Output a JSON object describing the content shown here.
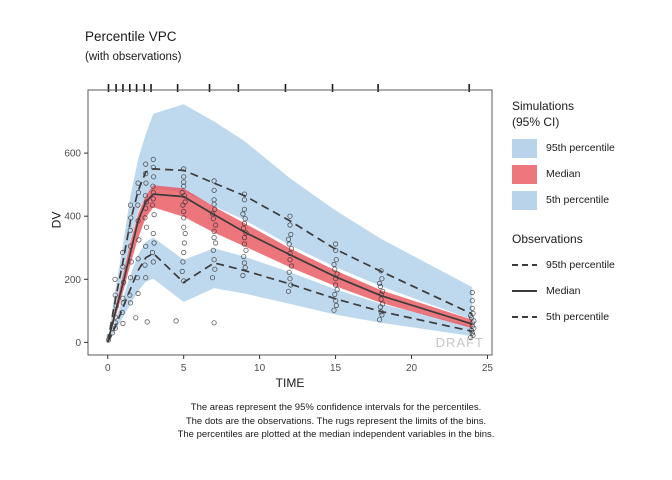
{
  "title": "Percentile VPC",
  "subtitle": "(with observations)",
  "watermark": "DRAFT",
  "axes": {
    "x_label": "TIME",
    "y_label": "DV"
  },
  "legend": {
    "simulations": {
      "heading_line1": "Simulations",
      "heading_line2": "(95% CI)",
      "items": [
        {
          "label": "95th percentile",
          "color": "#B8D3EA"
        },
        {
          "label": "Median",
          "color": "#EE767D"
        },
        {
          "label": "5th percentile",
          "color": "#B8D3EA"
        }
      ]
    },
    "observations": {
      "heading": "Observations",
      "items": [
        {
          "label": "95th percentile",
          "style": "dashed"
        },
        {
          "label": "Median",
          "style": "solid"
        },
        {
          "label": "5th percentile",
          "style": "dashed"
        }
      ]
    }
  },
  "caption_lines": [
    "The areas represent the 95% confidence intervals for the percentiles.",
    "The dots are the observations. The rugs represent the limits of the bins.",
    "The percentiles are plotted at the median independent variables in the bins."
  ],
  "chart_data": {
    "type": "area",
    "title": "Percentile VPC",
    "subtitle": "(with observations)",
    "xlabel": "TIME",
    "ylabel": "DV",
    "xlim": [
      -1.3,
      25.3
    ],
    "ylim": [
      -40,
      800
    ],
    "x_ticks": [
      0,
      5,
      10,
      15,
      20,
      25
    ],
    "y_ticks": [
      0,
      200,
      400,
      600
    ],
    "grid": false,
    "legend_position": "right",
    "x": [
      0,
      0.5,
      1,
      1.5,
      2,
      2.5,
      3,
      5,
      7,
      9,
      12,
      15,
      18,
      24
    ],
    "bands": [
      {
        "name": "95th percentile 95% CI",
        "color": "#88B8DE",
        "opacity": 0.55,
        "upper": [
          0,
          165,
          310,
          465,
          580,
          660,
          725,
          755,
          700,
          638,
          520,
          418,
          328,
          175
        ],
        "lower": [
          0,
          100,
          200,
          318,
          415,
          462,
          485,
          478,
          432,
          388,
          308,
          238,
          178,
          72
        ]
      },
      {
        "name": "5th percentile 95% CI",
        "color": "#88B8DE",
        "opacity": 0.55,
        "upper": [
          0,
          70,
          140,
          215,
          278,
          318,
          332,
          262,
          298,
          272,
          222,
          168,
          122,
          52
        ],
        "lower": [
          0,
          38,
          78,
          122,
          162,
          192,
          202,
          128,
          172,
          155,
          122,
          88,
          62,
          20
        ]
      },
      {
        "name": "Median 95% CI",
        "color": "#E8545C",
        "opacity": 0.8,
        "upper": [
          0,
          110,
          212,
          318,
          408,
          465,
          498,
          488,
          430,
          378,
          298,
          228,
          165,
          72
        ],
        "lower": [
          0,
          78,
          158,
          248,
          330,
          395,
          428,
          398,
          348,
          305,
          238,
          178,
          125,
          45
        ]
      }
    ],
    "lines": [
      {
        "name": "Observed 95th percentile",
        "style": "dashed",
        "values": [
          0,
          135,
          255,
          385,
          480,
          540,
          550,
          545,
          505,
          465,
          385,
          295,
          225,
          90
        ]
      },
      {
        "name": "Observed median",
        "style": "solid",
        "values": [
          0,
          95,
          185,
          285,
          385,
          445,
          470,
          462,
          405,
          350,
          278,
          208,
          148,
          58
        ]
      },
      {
        "name": "Observed 5th percentile",
        "style": "dashed",
        "values": [
          0,
          50,
          110,
          170,
          228,
          268,
          282,
          190,
          252,
          228,
          185,
          138,
          98,
          35
        ]
      }
    ],
    "rug_x": [
      0.05,
      0.55,
      1.0,
      1.45,
      1.9,
      2.4,
      2.85,
      4.6,
      6.7,
      8.6,
      11.7,
      14.8,
      17.8,
      23.8
    ],
    "points": [
      [
        0.05,
        8
      ],
      [
        0.1,
        20
      ],
      [
        0.3,
        30
      ],
      [
        0.5,
        45
      ],
      [
        0.5,
        80
      ],
      [
        0.55,
        115
      ],
      [
        0.5,
        150
      ],
      [
        0.48,
        200
      ],
      [
        0.52,
        62
      ],
      [
        1,
        60
      ],
      [
        0.95,
        95
      ],
      [
        1,
        140
      ],
      [
        1.05,
        190
      ],
      [
        1,
        240
      ],
      [
        0.98,
        285
      ],
      [
        1.02,
        125
      ],
      [
        1.45,
        150
      ],
      [
        1.5,
        205
      ],
      [
        1.55,
        255
      ],
      [
        1.5,
        305
      ],
      [
        1.48,
        355
      ],
      [
        1.52,
        395
      ],
      [
        1.5,
        125
      ],
      [
        1.5,
        435
      ],
      [
        1.95,
        205
      ],
      [
        2,
        265
      ],
      [
        2.05,
        325
      ],
      [
        2,
        385
      ],
      [
        1.98,
        435
      ],
      [
        2.02,
        475
      ],
      [
        2,
        155
      ],
      [
        2,
        505
      ],
      [
        1.85,
        78
      ],
      [
        2.45,
        245
      ],
      [
        2.5,
        305
      ],
      [
        2.55,
        365
      ],
      [
        2.5,
        425
      ],
      [
        2.48,
        465
      ],
      [
        2.52,
        505
      ],
      [
        2.5,
        535
      ],
      [
        2.5,
        565
      ],
      [
        2.5,
        205
      ],
      [
        2.6,
        65
      ],
      [
        2.45,
        395
      ],
      [
        2.55,
        445
      ],
      [
        2.95,
        285
      ],
      [
        3,
        345
      ],
      [
        3.05,
        405
      ],
      [
        3,
        455
      ],
      [
        2.98,
        495
      ],
      [
        3.02,
        525
      ],
      [
        3,
        555
      ],
      [
        3,
        580
      ],
      [
        3,
        255
      ],
      [
        3.05,
        315
      ],
      [
        2.95,
        435
      ],
      [
        3,
        475
      ],
      [
        4.5,
        68
      ],
      [
        4.9,
        225
      ],
      [
        5,
        285
      ],
      [
        5.1,
        345
      ],
      [
        5,
        395
      ],
      [
        4.95,
        435
      ],
      [
        5.05,
        465
      ],
      [
        5,
        495
      ],
      [
        5,
        525
      ],
      [
        5,
        550
      ],
      [
        5,
        195
      ],
      [
        4.95,
        255
      ],
      [
        5.05,
        315
      ],
      [
        5,
        365
      ],
      [
        5,
        415
      ],
      [
        5.1,
        445
      ],
      [
        4.9,
        475
      ],
      [
        5,
        508
      ],
      [
        7,
        62
      ],
      [
        6.9,
        205
      ],
      [
        7,
        262
      ],
      [
        7.1,
        315
      ],
      [
        7,
        352
      ],
      [
        6.95,
        392
      ],
      [
        7.05,
        422
      ],
      [
        7,
        452
      ],
      [
        7,
        482
      ],
      [
        7,
        512
      ],
      [
        7.05,
        232
      ],
      [
        6.95,
        292
      ],
      [
        7,
        332
      ],
      [
        7.1,
        372
      ],
      [
        6.9,
        408
      ],
      [
        7,
        438
      ],
      [
        8.9,
        212
      ],
      [
        9,
        252
      ],
      [
        9.1,
        292
      ],
      [
        9,
        332
      ],
      [
        8.95,
        362
      ],
      [
        9.05,
        392
      ],
      [
        9,
        422
      ],
      [
        9,
        452
      ],
      [
        9,
        470
      ],
      [
        9.05,
        237
      ],
      [
        8.95,
        272
      ],
      [
        9,
        312
      ],
      [
        9.1,
        347
      ],
      [
        9,
        377
      ],
      [
        8.9,
        407
      ],
      [
        11.9,
        162
      ],
      [
        12,
        202
      ],
      [
        12.1,
        242
      ],
      [
        12,
        282
      ],
      [
        11.95,
        312
      ],
      [
        12.05,
        342
      ],
      [
        12,
        372
      ],
      [
        12,
        400
      ],
      [
        12.05,
        182
      ],
      [
        11.95,
        222
      ],
      [
        12,
        262
      ],
      [
        12.1,
        297
      ],
      [
        11.9,
        327
      ],
      [
        14.9,
        102
      ],
      [
        15,
        132
      ],
      [
        15.1,
        167
      ],
      [
        15,
        202
      ],
      [
        14.95,
        232
      ],
      [
        15.05,
        262
      ],
      [
        15,
        292
      ],
      [
        15,
        312
      ],
      [
        15.05,
        117
      ],
      [
        14.95,
        152
      ],
      [
        15,
        182
      ],
      [
        15.1,
        217
      ],
      [
        14.9,
        247
      ],
      [
        17.9,
        72
      ],
      [
        18,
        97
      ],
      [
        18.1,
        122
      ],
      [
        18,
        152
      ],
      [
        17.95,
        177
      ],
      [
        18.05,
        202
      ],
      [
        18,
        227
      ],
      [
        18.05,
        87
      ],
      [
        17.95,
        112
      ],
      [
        18,
        137
      ],
      [
        18.1,
        162
      ],
      [
        17.9,
        187
      ],
      [
        23.9,
        15
      ],
      [
        24,
        30
      ],
      [
        24.1,
        45
      ],
      [
        24,
        62
      ],
      [
        23.95,
        78
      ],
      [
        24.05,
        92
      ],
      [
        24,
        108
      ],
      [
        24.05,
        22
      ],
      [
        23.95,
        38
      ],
      [
        24,
        52
      ],
      [
        24.1,
        68
      ],
      [
        23.9,
        85
      ],
      [
        24,
        132
      ],
      [
        24,
        158
      ]
    ]
  }
}
